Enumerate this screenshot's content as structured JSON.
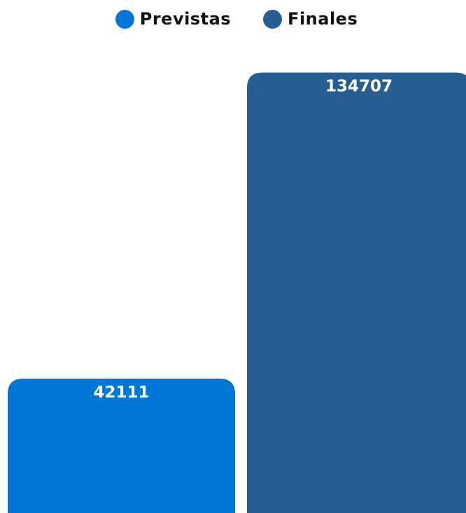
{
  "chart_data": {
    "type": "bar",
    "categories": [
      "Previstas",
      "Finales"
    ],
    "series": [
      {
        "name": "Previstas",
        "color": "#0077D6",
        "values": [
          42111,
          null
        ]
      },
      {
        "name": "Finales",
        "color": "#265E94",
        "values": [
          null,
          134707
        ]
      }
    ],
    "data_labels": [
      "42111",
      "134707"
    ],
    "title": "",
    "xlabel": "",
    "ylabel": "",
    "ylim": [
      0,
      150000
    ],
    "grid": false,
    "legend_position": "top-center"
  }
}
